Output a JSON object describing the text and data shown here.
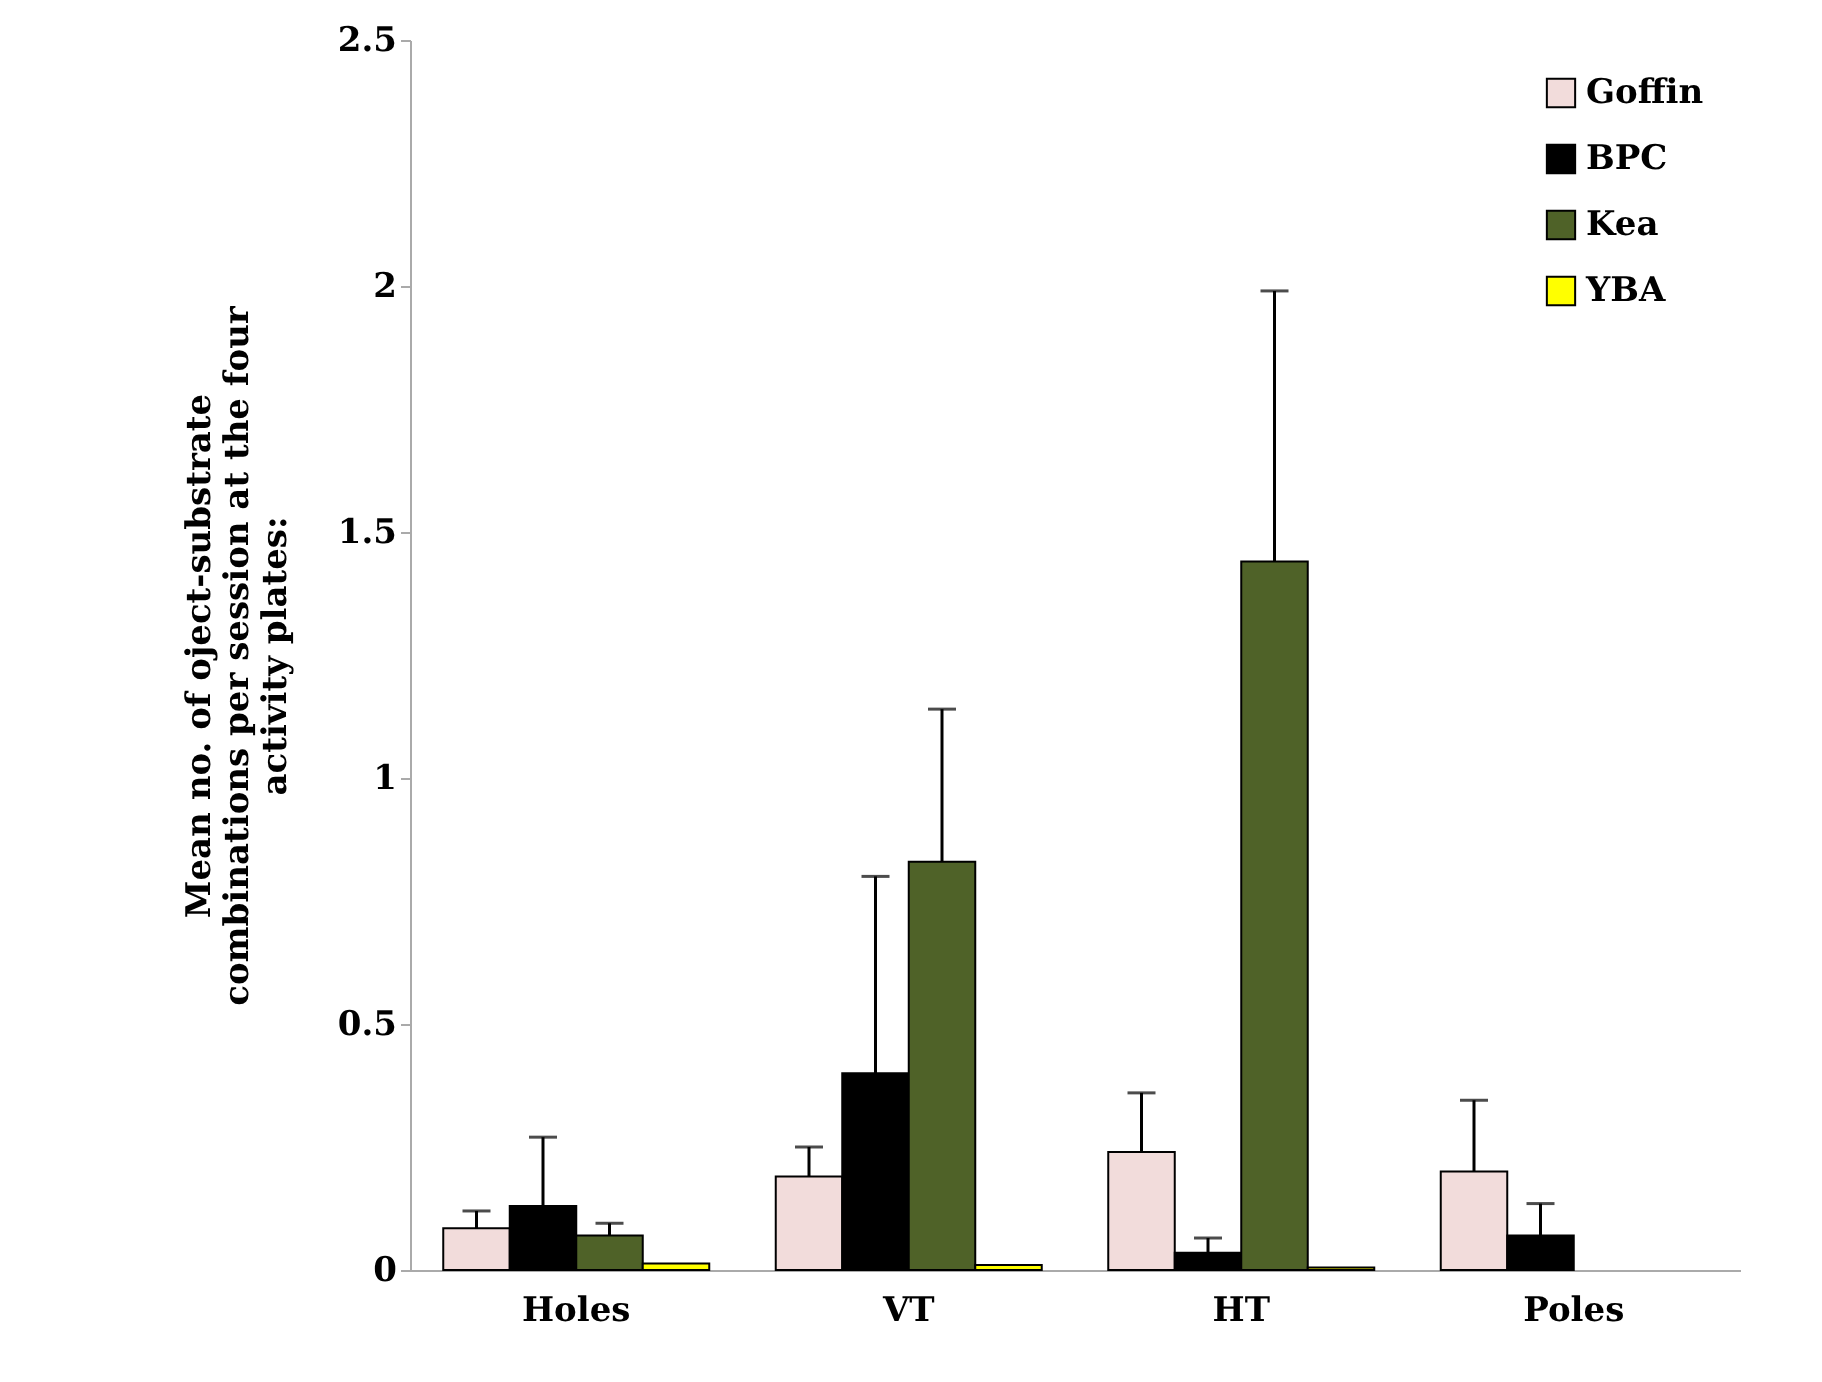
{
  "chart_data": {
    "type": "bar",
    "ylabel": "Mean no. of oject-substrate\ncombinations per session at the four\nactivity plates:",
    "categories": [
      "Holes",
      "VT",
      "HT",
      "Poles"
    ],
    "series": [
      {
        "name": "Goffin",
        "color": "#f2dcdb",
        "values": [
          0.085,
          0.19,
          0.24,
          0.2
        ],
        "errors": [
          [
            0.085,
            0.12
          ],
          [
            0.19,
            0.25
          ],
          [
            0.24,
            0.36
          ],
          [
            0.2,
            0.345
          ]
        ]
      },
      {
        "name": "BPC",
        "color": "#000000",
        "values": [
          0.13,
          0.4,
          0.035,
          0.07
        ],
        "errors": [
          [
            0.13,
            0.27
          ],
          [
            0.4,
            0.8
          ],
          [
            0.035,
            0.065
          ],
          [
            0.07,
            0.135
          ]
        ]
      },
      {
        "name": "Kea",
        "color": "#4f6228",
        "values": [
          0.07,
          0.83,
          1.44,
          0
        ],
        "errors": [
          [
            0.07,
            0.095
          ],
          [
            0.83,
            1.14
          ],
          [
            1.44,
            1.99
          ],
          null
        ]
      },
      {
        "name": "YBA",
        "color": "#ffff00",
        "values": [
          0.013,
          0.01,
          0.005,
          0
        ]
      }
    ],
    "ylim": [
      0,
      2.5
    ],
    "yticks": [
      0,
      0.5,
      1,
      1.5,
      2,
      2.5
    ],
    "legend": "top right"
  }
}
